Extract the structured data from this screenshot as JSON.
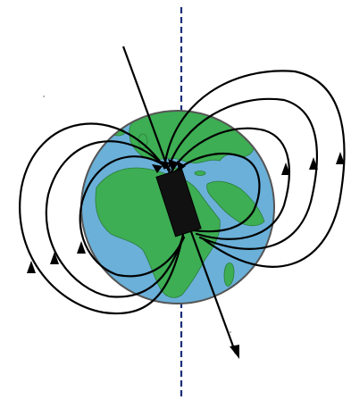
{
  "diagram": {
    "subject": "earth-magnetic-field",
    "colors": {
      "background": "#ffffff",
      "ocean": "#6ab0d8",
      "land": "#3dae53",
      "globe_outline": "#555555",
      "magnet": "#111111",
      "field_lines": "#000000",
      "rotation_axis": "#1a2f7a"
    },
    "elements": [
      {
        "name": "rotation-axis",
        "style": "dashed vertical line"
      },
      {
        "name": "earth-globe",
        "style": "blue ocean with green continents"
      },
      {
        "name": "bar-magnet",
        "style": "black tilted bar inside globe"
      },
      {
        "name": "magnetic-field-lines",
        "style": "closed loops with arrowheads"
      },
      {
        "name": "magnetic-axis",
        "style": "arrowed line through magnet"
      }
    ]
  }
}
